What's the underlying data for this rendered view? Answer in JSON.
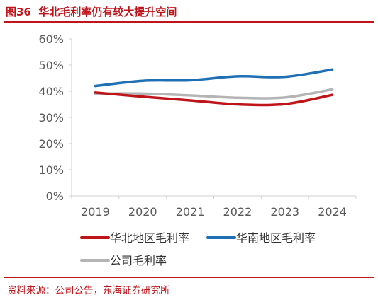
{
  "header": {
    "figure_label": "图36",
    "title": "华北毛利率仍有较大提升空间"
  },
  "footer": {
    "source": "资料来源：公司公告，东海证券研究所"
  },
  "chart_data": {
    "type": "line",
    "x": [
      "2019",
      "2020",
      "2021",
      "2022",
      "2023",
      "2024"
    ],
    "series": [
      {
        "name": "华北地区毛利率",
        "values": [
          39.5,
          37.9,
          36.5,
          35.0,
          35.1,
          38.6
        ],
        "color": "#c0141b"
      },
      {
        "name": "华南地区毛利率",
        "values": [
          42.0,
          44.0,
          44.2,
          45.7,
          45.5,
          48.3
        ],
        "color": "#1f6fb5"
      },
      {
        "name": "公司毛利率",
        "values": [
          39.1,
          39.1,
          38.4,
          37.5,
          37.6,
          40.7
        ],
        "color": "#b4b4b4"
      }
    ],
    "yticks": [
      "0%",
      "10%",
      "20%",
      "30%",
      "40%",
      "50%",
      "60%"
    ],
    "ylim": [
      0,
      60
    ],
    "grid": false,
    "legend_position": "bottom"
  }
}
